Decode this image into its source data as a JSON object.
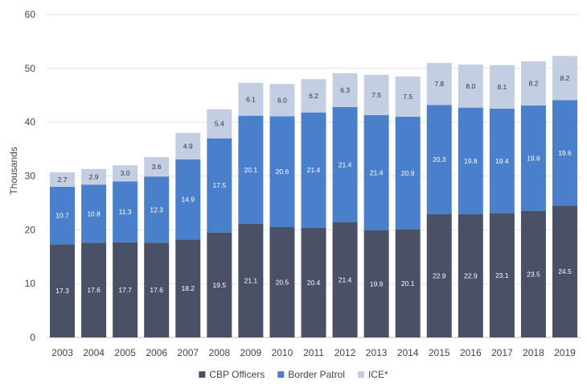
{
  "chart_data": {
    "type": "bar",
    "stacked": true,
    "ylabel": "Thousands",
    "ylim": [
      0,
      60
    ],
    "yticks": [
      0,
      10,
      20,
      30,
      40,
      50,
      60
    ],
    "grid": true,
    "legend_position": "bottom",
    "categories": [
      "2003",
      "2004",
      "2005",
      "2006",
      "2007",
      "2008",
      "2009",
      "2010",
      "2011",
      "2012",
      "2013",
      "2014",
      "2015",
      "2016",
      "2017",
      "2018",
      "2019"
    ],
    "series": [
      {
        "name": "CBP Officers",
        "color": "#4a5065",
        "label_color": "#ffffff",
        "values": [
          17.3,
          17.6,
          17.7,
          17.6,
          18.2,
          19.5,
          21.1,
          20.5,
          20.4,
          21.4,
          19.9,
          20.1,
          22.9,
          22.9,
          23.1,
          23.5,
          24.5
        ]
      },
      {
        "name": "Border Patrol",
        "color": "#4a7fcc",
        "label_color": "#ffffff",
        "values": [
          10.7,
          10.8,
          11.3,
          12.3,
          14.9,
          17.5,
          20.1,
          20.6,
          21.4,
          21.4,
          21.4,
          20.9,
          20.3,
          19.8,
          19.4,
          19.6,
          19.6
        ]
      },
      {
        "name": "ICE*",
        "color": "#c4cee2",
        "label_color": "#333333",
        "values": [
          2.7,
          2.9,
          3.0,
          3.6,
          4.9,
          5.4,
          6.1,
          6.0,
          6.2,
          6.3,
          7.5,
          7.5,
          7.8,
          8.0,
          8.1,
          8.2,
          8.2
        ]
      }
    ]
  }
}
